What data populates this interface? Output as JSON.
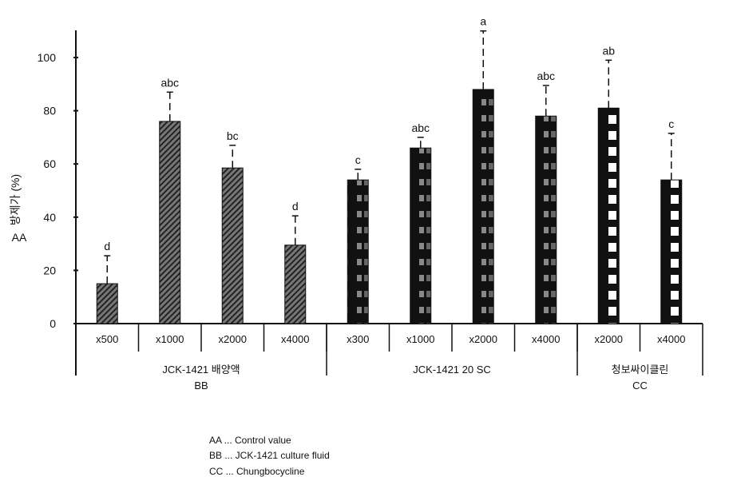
{
  "chart_data": {
    "type": "bar",
    "ylabel": "방제가 (%)",
    "ylabel_note": "AA",
    "ylim": [
      0,
      110
    ],
    "yticks": [
      "0",
      "20",
      "40",
      "60",
      "80",
      "100"
    ],
    "grid": false,
    "categories": [
      "x500",
      "x1000",
      "x2000",
      "x4000",
      "x300",
      "x1000",
      "x2000",
      "x4000",
      "x2000",
      "x4000"
    ],
    "values": [
      15,
      76,
      58.5,
      29.5,
      54,
      66,
      88,
      78,
      81,
      54
    ],
    "error_upper": [
      25.5,
      87,
      67,
      40.5,
      58,
      70,
      110,
      89.5,
      99,
      71.5
    ],
    "significance": [
      "d",
      "abc",
      "bc",
      "d",
      "c",
      "abc",
      "a",
      "abc",
      "ab",
      "c"
    ],
    "groups": [
      {
        "label": "JCK-1421 배양액",
        "note": "BB",
        "pattern": "hatch",
        "count": 4
      },
      {
        "label": "JCK-1421 20 SC",
        "note": "",
        "pattern": "dark-check",
        "count": 4
      },
      {
        "label": "청보싸이클린",
        "note": "CC",
        "pattern": "white-squares",
        "count": 2
      }
    ],
    "colors": {
      "hatch": "#555555",
      "dark": "#111111"
    }
  },
  "legend": [
    "AA ... Control value",
    "BB ... JCK-1421 culture fluid",
    "CC ... Chungbocycline"
  ]
}
